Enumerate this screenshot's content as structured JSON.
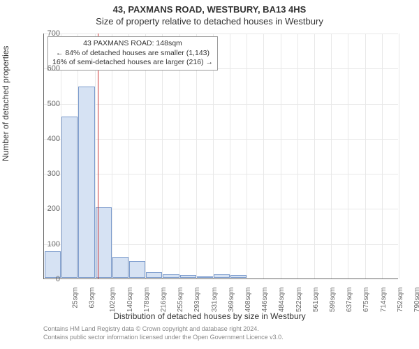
{
  "titles": {
    "main": "43, PAXMANS ROAD, WESTBURY, BA13 4HS",
    "sub": "Size of property relative to detached houses in Westbury"
  },
  "chart": {
    "type": "histogram",
    "xlabel": "Distribution of detached houses by size in Westbury",
    "ylabel": "Number of detached properties",
    "ylim": [
      0,
      700
    ],
    "ytick_step": 100,
    "yticks": [
      0,
      100,
      200,
      300,
      400,
      500,
      600,
      700
    ],
    "x_categories": [
      "25sqm",
      "63sqm",
      "102sqm",
      "140sqm",
      "178sqm",
      "216sqm",
      "255sqm",
      "293sqm",
      "331sqm",
      "369sqm",
      "408sqm",
      "446sqm",
      "484sqm",
      "522sqm",
      "561sqm",
      "599sqm",
      "637sqm",
      "675sqm",
      "714sqm",
      "752sqm",
      "790sqm"
    ],
    "values": [
      75,
      460,
      545,
      200,
      60,
      48,
      15,
      10,
      8,
      2,
      10,
      8,
      0,
      0,
      0,
      0,
      0,
      0,
      0,
      0,
      0
    ],
    "bar_fill": "#d6e2f3",
    "bar_stroke": "#7a9acc",
    "background_color": "#ffffff",
    "grid_color": "#e8e8e8",
    "axis_color": "#666666",
    "marker": {
      "color": "#cc3333",
      "position_index": 3.2
    },
    "annotation": {
      "title": "43 PAXMANS ROAD: 148sqm",
      "line1": "← 84% of detached houses are smaller (1,143)",
      "line2": "16% of semi-detached houses are larger (216) →",
      "border_color": "#999999",
      "background": "#ffffff"
    },
    "title_fontsize": 13,
    "label_fontsize": 12,
    "tick_fontsize": 11
  },
  "footer": {
    "line1": "Contains HM Land Registry data © Crown copyright and database right 2024.",
    "line2": "Contains public sector information licensed under the Open Government Licence v3.0."
  }
}
